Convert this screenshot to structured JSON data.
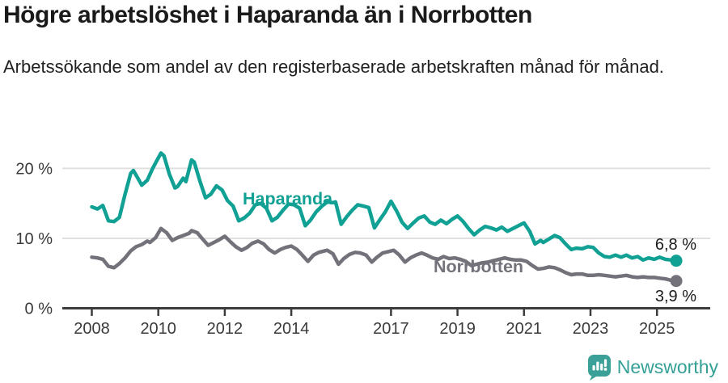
{
  "header": {
    "title": "Högre arbetslöshet i Haparanda än i Norrbotten",
    "subtitle": "Arbetssökande som andel av den registerbaserade arbetskraften månad för månad."
  },
  "chart_data": {
    "type": "line",
    "unit": "%",
    "title": "Högre arbetslöshet i Haparanda än i Norrbotten",
    "subtitle": "Arbetssökande som andel av den registerbaserade arbetskraften månad för månad.",
    "legend_position": "inline-labels-on-lines",
    "grid": "horizontal-only",
    "x_axis": {
      "min": 2008,
      "max": 2025.8,
      "ticks": [
        "2008",
        "2010",
        "2012",
        "2014",
        "2017",
        "2019",
        "2021",
        "2023",
        "2025"
      ],
      "tick_years": [
        2008,
        2010,
        2012,
        2014,
        2017,
        2019,
        2021,
        2023,
        2025
      ]
    },
    "y_axis": {
      "range": [
        0,
        23
      ],
      "gridlines": [
        10,
        20
      ],
      "ticks": [
        {
          "value": 0,
          "label": "0 %"
        },
        {
          "value": 10,
          "label": "10 %"
        },
        {
          "value": 20,
          "label": "20 %"
        }
      ]
    },
    "series": [
      {
        "name": "Haparanda",
        "color": "#10a194",
        "end_value": 6.8,
        "end_label": "6,8 %",
        "points": [
          [
            2008.0,
            14.5
          ],
          [
            2008.17,
            14.2
          ],
          [
            2008.33,
            14.7
          ],
          [
            2008.5,
            12.5
          ],
          [
            2008.67,
            12.4
          ],
          [
            2008.83,
            13.0
          ],
          [
            2009.0,
            16.3
          ],
          [
            2009.17,
            19.3
          ],
          [
            2009.25,
            19.7
          ],
          [
            2009.42,
            18.3
          ],
          [
            2009.5,
            17.6
          ],
          [
            2009.67,
            18.3
          ],
          [
            2009.83,
            20.0
          ],
          [
            2010.0,
            21.5
          ],
          [
            2010.08,
            22.2
          ],
          [
            2010.17,
            21.8
          ],
          [
            2010.33,
            19.2
          ],
          [
            2010.5,
            17.2
          ],
          [
            2010.58,
            17.4
          ],
          [
            2010.75,
            18.6
          ],
          [
            2010.83,
            18.1
          ],
          [
            2011.0,
            21.2
          ],
          [
            2011.08,
            20.9
          ],
          [
            2011.25,
            18.2
          ],
          [
            2011.42,
            15.8
          ],
          [
            2011.58,
            16.3
          ],
          [
            2011.75,
            17.5
          ],
          [
            2011.92,
            16.9
          ],
          [
            2012.08,
            15.4
          ],
          [
            2012.25,
            14.6
          ],
          [
            2012.42,
            12.5
          ],
          [
            2012.58,
            12.9
          ],
          [
            2012.75,
            13.6
          ],
          [
            2012.92,
            14.8
          ],
          [
            2013.08,
            15.0
          ],
          [
            2013.25,
            14.3
          ],
          [
            2013.42,
            12.5
          ],
          [
            2013.58,
            13.0
          ],
          [
            2013.75,
            14.0
          ],
          [
            2013.92,
            14.9
          ],
          [
            2014.08,
            14.8
          ],
          [
            2014.25,
            14.3
          ],
          [
            2014.42,
            11.8
          ],
          [
            2014.58,
            12.6
          ],
          [
            2014.75,
            13.8
          ],
          [
            2014.92,
            14.6
          ],
          [
            2015.08,
            15.2
          ],
          [
            2015.25,
            15.1
          ],
          [
            2015.33,
            15.2
          ],
          [
            2015.5,
            12.0
          ],
          [
            2015.67,
            13.1
          ],
          [
            2015.83,
            14.0
          ],
          [
            2016.0,
            14.8
          ],
          [
            2016.17,
            14.6
          ],
          [
            2016.33,
            14.4
          ],
          [
            2016.5,
            11.5
          ],
          [
            2016.67,
            12.7
          ],
          [
            2016.83,
            13.8
          ],
          [
            2017.0,
            15.3
          ],
          [
            2017.17,
            13.9
          ],
          [
            2017.33,
            12.3
          ],
          [
            2017.5,
            11.4
          ],
          [
            2017.67,
            12.2
          ],
          [
            2017.83,
            12.9
          ],
          [
            2018.0,
            13.2
          ],
          [
            2018.17,
            12.3
          ],
          [
            2018.33,
            12.0
          ],
          [
            2018.5,
            12.6
          ],
          [
            2018.67,
            12.1
          ],
          [
            2018.83,
            12.7
          ],
          [
            2019.0,
            13.2
          ],
          [
            2019.17,
            12.4
          ],
          [
            2019.33,
            11.4
          ],
          [
            2019.5,
            10.5
          ],
          [
            2019.67,
            11.2
          ],
          [
            2019.83,
            11.7
          ],
          [
            2020.0,
            11.5
          ],
          [
            2020.17,
            11.2
          ],
          [
            2020.33,
            11.6
          ],
          [
            2020.5,
            11.0
          ],
          [
            2020.67,
            11.4
          ],
          [
            2020.83,
            11.8
          ],
          [
            2021.0,
            12.2
          ],
          [
            2021.17,
            11.0
          ],
          [
            2021.33,
            9.2
          ],
          [
            2021.5,
            9.7
          ],
          [
            2021.58,
            9.4
          ],
          [
            2021.75,
            9.9
          ],
          [
            2021.92,
            10.4
          ],
          [
            2022.08,
            10.1
          ],
          [
            2022.25,
            9.2
          ],
          [
            2022.42,
            8.4
          ],
          [
            2022.58,
            8.6
          ],
          [
            2022.75,
            8.5
          ],
          [
            2022.92,
            8.8
          ],
          [
            2023.08,
            8.7
          ],
          [
            2023.25,
            7.9
          ],
          [
            2023.42,
            7.4
          ],
          [
            2023.58,
            7.3
          ],
          [
            2023.75,
            7.6
          ],
          [
            2023.92,
            7.3
          ],
          [
            2024.08,
            7.6
          ],
          [
            2024.25,
            7.2
          ],
          [
            2024.42,
            7.4
          ],
          [
            2024.58,
            6.9
          ],
          [
            2024.75,
            7.2
          ],
          [
            2024.92,
            7.0
          ],
          [
            2025.08,
            7.3
          ],
          [
            2025.25,
            7.0
          ],
          [
            2025.42,
            6.9
          ],
          [
            2025.58,
            6.8
          ]
        ]
      },
      {
        "name": "Norrbotten",
        "color": "#73717a",
        "end_value": 3.9,
        "end_label": "3,9 %",
        "points": [
          [
            2008.0,
            7.3
          ],
          [
            2008.17,
            7.2
          ],
          [
            2008.33,
            7.0
          ],
          [
            2008.5,
            6.0
          ],
          [
            2008.67,
            5.8
          ],
          [
            2008.83,
            6.4
          ],
          [
            2009.0,
            7.2
          ],
          [
            2009.17,
            8.2
          ],
          [
            2009.33,
            8.8
          ],
          [
            2009.5,
            9.1
          ],
          [
            2009.67,
            9.6
          ],
          [
            2009.75,
            9.4
          ],
          [
            2009.92,
            10.1
          ],
          [
            2010.08,
            11.4
          ],
          [
            2010.25,
            10.8
          ],
          [
            2010.42,
            9.7
          ],
          [
            2010.58,
            10.1
          ],
          [
            2010.75,
            10.4
          ],
          [
            2010.92,
            10.7
          ],
          [
            2011.0,
            11.1
          ],
          [
            2011.17,
            10.8
          ],
          [
            2011.33,
            9.9
          ],
          [
            2011.5,
            9.0
          ],
          [
            2011.67,
            9.4
          ],
          [
            2011.83,
            9.8
          ],
          [
            2012.0,
            10.3
          ],
          [
            2012.17,
            9.5
          ],
          [
            2012.33,
            8.8
          ],
          [
            2012.5,
            8.3
          ],
          [
            2012.67,
            8.7
          ],
          [
            2012.83,
            9.3
          ],
          [
            2013.0,
            9.6
          ],
          [
            2013.17,
            9.2
          ],
          [
            2013.33,
            8.4
          ],
          [
            2013.5,
            7.9
          ],
          [
            2013.67,
            8.4
          ],
          [
            2013.83,
            8.7
          ],
          [
            2014.0,
            8.9
          ],
          [
            2014.17,
            8.4
          ],
          [
            2014.33,
            7.6
          ],
          [
            2014.5,
            6.7
          ],
          [
            2014.67,
            7.6
          ],
          [
            2014.83,
            8.0
          ],
          [
            2015.08,
            8.3
          ],
          [
            2015.25,
            7.8
          ],
          [
            2015.42,
            6.3
          ],
          [
            2015.58,
            7.1
          ],
          [
            2015.75,
            7.7
          ],
          [
            2015.92,
            8.0
          ],
          [
            2016.08,
            7.9
          ],
          [
            2016.25,
            7.6
          ],
          [
            2016.42,
            6.6
          ],
          [
            2016.58,
            7.3
          ],
          [
            2016.75,
            7.9
          ],
          [
            2016.92,
            8.1
          ],
          [
            2017.08,
            8.3
          ],
          [
            2017.25,
            7.6
          ],
          [
            2017.42,
            6.6
          ],
          [
            2017.58,
            7.2
          ],
          [
            2017.75,
            7.6
          ],
          [
            2017.92,
            7.9
          ],
          [
            2018.08,
            7.6
          ],
          [
            2018.25,
            7.2
          ],
          [
            2018.42,
            7.0
          ],
          [
            2018.58,
            7.4
          ],
          [
            2018.75,
            7.1
          ],
          [
            2018.92,
            7.2
          ],
          [
            2019.08,
            7.0
          ],
          [
            2019.25,
            6.7
          ],
          [
            2019.42,
            6.1
          ],
          [
            2019.58,
            6.3
          ],
          [
            2019.75,
            6.5
          ],
          [
            2019.92,
            6.6
          ],
          [
            2020.08,
            6.8
          ],
          [
            2020.25,
            7.0
          ],
          [
            2020.42,
            7.2
          ],
          [
            2020.58,
            7.0
          ],
          [
            2020.75,
            6.9
          ],
          [
            2020.92,
            6.9
          ],
          [
            2021.08,
            6.7
          ],
          [
            2021.25,
            6.1
          ],
          [
            2021.42,
            5.6
          ],
          [
            2021.58,
            5.7
          ],
          [
            2021.75,
            5.9
          ],
          [
            2021.92,
            5.8
          ],
          [
            2022.08,
            5.5
          ],
          [
            2022.25,
            5.1
          ],
          [
            2022.42,
            4.8
          ],
          [
            2022.58,
            4.9
          ],
          [
            2022.75,
            4.9
          ],
          [
            2022.92,
            4.7
          ],
          [
            2023.08,
            4.7
          ],
          [
            2023.25,
            4.8
          ],
          [
            2023.42,
            4.7
          ],
          [
            2023.58,
            4.6
          ],
          [
            2023.75,
            4.5
          ],
          [
            2023.92,
            4.6
          ],
          [
            2024.08,
            4.7
          ],
          [
            2024.25,
            4.5
          ],
          [
            2024.42,
            4.4
          ],
          [
            2024.58,
            4.5
          ],
          [
            2024.75,
            4.4
          ],
          [
            2024.92,
            4.4
          ],
          [
            2025.08,
            4.3
          ],
          [
            2025.25,
            4.2
          ],
          [
            2025.42,
            4.0
          ],
          [
            2025.58,
            3.9
          ]
        ]
      }
    ],
    "colors": {
      "haparanda_teal": "#10a194",
      "norrbotten_gray": "#73717a",
      "axis": "#3c3c3c",
      "gridline": "#e0e0e0",
      "tick_label": "#3a3a3a",
      "value_label": "#1a1a1a",
      "brand_teal": "#35a096"
    }
  },
  "footer": {
    "brand": "Newsworthy",
    "logo_icon": "newsworthy-speech-bubble-bar-chart-icon"
  }
}
